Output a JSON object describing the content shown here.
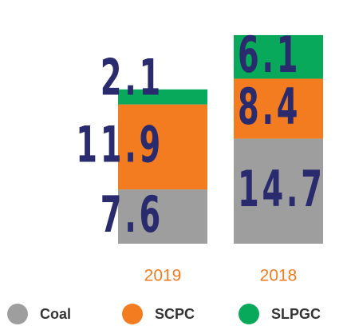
{
  "chart_data": {
    "type": "stacked_bar",
    "categories": [
      "2019",
      "2018"
    ],
    "series": [
      {
        "name": "Coal",
        "color": "#9e9e9e",
        "values": [
          7.6,
          14.7
        ]
      },
      {
        "name": "SCPC",
        "color": "#f47c20",
        "values": [
          11.9,
          8.4
        ]
      },
      {
        "name": "SLPGC",
        "color": "#08a95b",
        "values": [
          2.1,
          6.1
        ]
      }
    ],
    "category_color": "#f47c20",
    "label_color": "#2a2a6e"
  }
}
